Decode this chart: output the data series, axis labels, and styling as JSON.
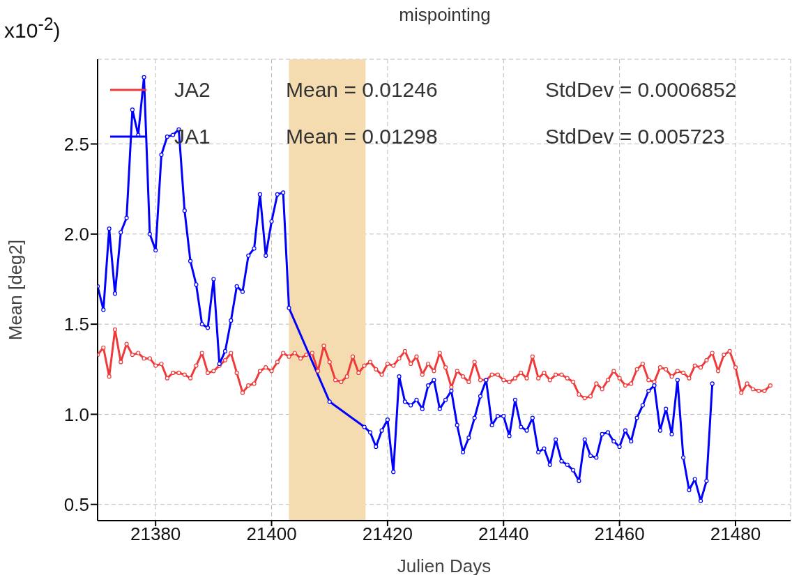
{
  "chart_data": {
    "type": "line",
    "title": "mispointing",
    "xlabel": "Julien Days",
    "ylabel": "Mean [deg2]",
    "annotations": [
      "Mean = 0.01246",
      "StdDev = 0.0006852",
      "Mean = 0.01298",
      "StdDev = 0.005723",
      "x10$^{-2}$)"
    ],
    "xlim": [
      21370,
      21489.5
    ],
    "xticks": [
      21380,
      21400,
      21420,
      21440,
      21460,
      21480
    ],
    "ylim": [
      0.41,
      2.97
    ],
    "yticks": [
      0.5,
      {
        "value": 1,
        "label": "1.0"
      },
      1.5,
      {
        "value": 2,
        "label": "2.0"
      },
      2.5
    ],
    "grid": true,
    "legend": "top left",
    "marker": "circle",
    "line_style": "solid",
    "bands": [
      {
        "axis": "x",
        "from": 21403,
        "to": 21416.2,
        "color": "#f5dcb0"
      }
    ],
    "series": [
      {
        "name": "JA2",
        "color": "#f03a3a",
        "x": [
          21370,
          21371,
          21372,
          21373,
          21374,
          21375,
          21376,
          21377,
          21378,
          21379,
          21380,
          21381,
          21382,
          21383,
          21384,
          21385,
          21386,
          21387,
          21388,
          21389,
          21390,
          21391,
          21392,
          21393,
          21394,
          21395,
          21396,
          21397,
          21398,
          21399,
          21400,
          21401,
          21402,
          21403,
          21404,
          21405,
          21406,
          21407,
          21408,
          21409,
          21410,
          21411,
          21412,
          21413,
          21414,
          21415,
          21416,
          21417,
          21418,
          21419,
          21420,
          21421,
          21422,
          21423,
          21424,
          21425,
          21426,
          21427,
          21428,
          21429,
          21430,
          21431,
          21432,
          21433,
          21434,
          21435,
          21436,
          21437,
          21438,
          21439,
          21440,
          21441,
          21442,
          21443,
          21444,
          21445,
          21446,
          21447,
          21448,
          21449,
          21450,
          21451,
          21452,
          21453,
          21454,
          21455,
          21456,
          21457,
          21458,
          21459,
          21460,
          21461,
          21462,
          21463,
          21464,
          21465,
          21466,
          21467,
          21468,
          21469,
          21470,
          21471,
          21472,
          21473,
          21474,
          21475,
          21476,
          21477,
          21478,
          21479,
          21480,
          21481,
          21482,
          21483,
          21484,
          21485,
          21486
        ],
        "values": [
          1.33,
          1.37,
          1.21,
          1.47,
          1.29,
          1.39,
          1.33,
          1.34,
          1.31,
          1.31,
          1.27,
          1.28,
          1.2,
          1.23,
          1.23,
          1.22,
          1.2,
          1.27,
          1.34,
          1.23,
          1.24,
          1.27,
          1.3,
          1.34,
          1.23,
          1.12,
          1.16,
          1.17,
          1.24,
          1.26,
          1.24,
          1.29,
          1.34,
          1.32,
          1.34,
          1.31,
          1.33,
          1.34,
          1.24,
          1.38,
          1.29,
          1.19,
          1.18,
          1.21,
          1.32,
          1.23,
          1.27,
          1.29,
          1.25,
          1.22,
          1.28,
          1.27,
          1.31,
          1.35,
          1.28,
          1.32,
          1.22,
          1.28,
          1.24,
          1.34,
          1.26,
          1.15,
          1.24,
          1.21,
          1.18,
          1.29,
          1.19,
          1.19,
          1.22,
          1.22,
          1.19,
          1.18,
          1.2,
          1.23,
          1.2,
          1.32,
          1.2,
          1.23,
          1.19,
          1.22,
          1.22,
          1.2,
          1.18,
          1.11,
          1.09,
          1.1,
          1.17,
          1.14,
          1.19,
          1.24,
          1.2,
          1.16,
          1.17,
          1.25,
          1.28,
          1.19,
          1.18,
          1.26,
          1.25,
          1.21,
          1.24,
          1.23,
          1.2,
          1.27,
          1.26,
          1.3,
          1.34,
          1.24,
          1.33,
          1.35,
          1.26,
          1.12,
          1.17,
          1.14,
          1.13,
          1.13,
          1.16
        ]
      },
      {
        "name": "JA1",
        "color": "#0000ff",
        "x": [
          21370,
          21371,
          21372,
          21373,
          21374,
          21375,
          21376,
          21377,
          21378,
          21379,
          21380,
          21381,
          21382,
          21383,
          21384,
          21385,
          21386,
          21387,
          21388,
          21389,
          21390,
          21391,
          21392,
          21393,
          21394,
          21395,
          21396,
          21397,
          21398,
          21399,
          21400,
          21401,
          21402,
          21403,
          21410,
          21416,
          21417,
          21418,
          21419,
          21420,
          21421,
          21422,
          21423,
          21424,
          21425,
          21426,
          21427,
          21428,
          21429,
          21430,
          21431,
          21432,
          21433,
          21434,
          21435,
          21436,
          21437,
          21438,
          21439,
          21440,
          21441,
          21442,
          21443,
          21444,
          21445,
          21446,
          21447,
          21448,
          21449,
          21450,
          21451,
          21452,
          21453,
          21454,
          21455,
          21456,
          21457,
          21458,
          21459,
          21460,
          21461,
          21462,
          21463,
          21464,
          21465,
          21466,
          21467,
          21468,
          21469,
          21470,
          21471,
          21472,
          21473,
          21474,
          21475,
          21476
        ],
        "values": [
          1.71,
          1.58,
          2.03,
          1.67,
          2.01,
          2.09,
          2.69,
          2.55,
          2.87,
          2.0,
          1.91,
          2.44,
          2.54,
          2.55,
          2.58,
          2.13,
          1.85,
          1.72,
          1.5,
          1.48,
          1.75,
          1.28,
          1.35,
          1.52,
          1.71,
          1.68,
          1.88,
          1.92,
          2.22,
          1.88,
          2.07,
          2.22,
          2.23,
          1.59,
          1.07,
          0.93,
          0.9,
          0.82,
          0.91,
          0.97,
          0.68,
          1.21,
          1.07,
          1.05,
          1.08,
          1.03,
          1.16,
          1.19,
          1.03,
          1.08,
          1.13,
          0.94,
          0.79,
          0.87,
          0.98,
          1.1,
          1.19,
          0.94,
          0.99,
          0.99,
          0.88,
          1.08,
          0.93,
          0.91,
          0.98,
          0.79,
          0.81,
          0.72,
          0.86,
          0.74,
          0.72,
          0.69,
          0.63,
          0.86,
          0.77,
          0.76,
          0.89,
          0.9,
          0.85,
          0.82,
          0.91,
          0.85,
          0.98,
          1.05,
          1.13,
          1.16,
          0.91,
          1.03,
          0.89,
          1.19,
          0.76,
          0.58,
          0.64,
          0.52,
          0.63,
          1.17
        ]
      }
    ]
  }
}
